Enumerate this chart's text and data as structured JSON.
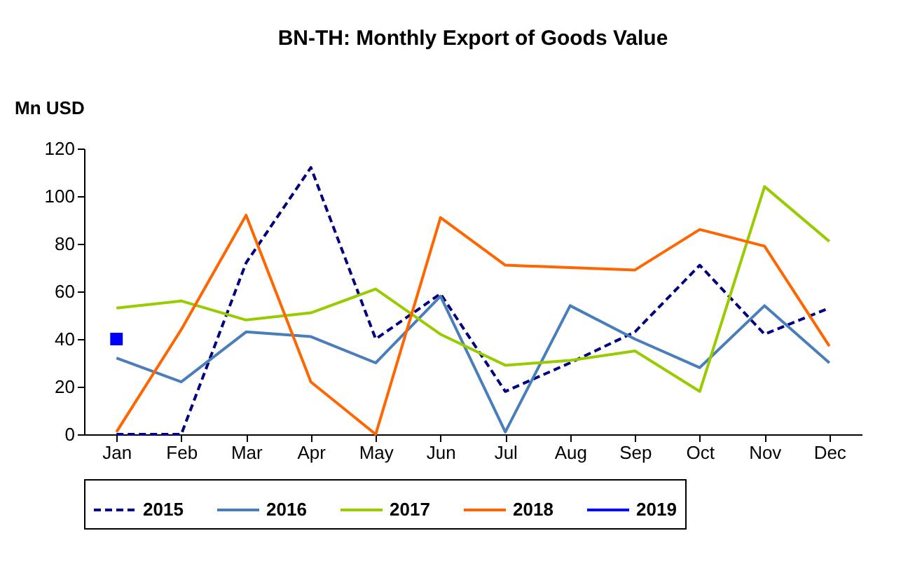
{
  "chart_data": {
    "type": "line",
    "title": "BN-TH: Monthly Export of Goods Value",
    "ylabel": "Mn USD",
    "categories": [
      "Jan",
      "Feb",
      "Mar",
      "Apr",
      "May",
      "Jun",
      "Jul",
      "Aug",
      "Sep",
      "Oct",
      "Nov",
      "Dec"
    ],
    "series": [
      {
        "name": "2015",
        "color": "#000080",
        "line_style": "dashed",
        "values": [
          0,
          0,
          72,
          112,
          40,
          59,
          18,
          30,
          43,
          71,
          42,
          53
        ]
      },
      {
        "name": "2016",
        "color": "#4a7ebb",
        "line_style": "solid",
        "values": [
          32,
          22,
          43,
          41,
          30,
          58,
          1,
          54,
          40,
          28,
          54,
          30
        ]
      },
      {
        "name": "2017",
        "color": "#99cc00",
        "line_style": "solid",
        "values": [
          53,
          56,
          48,
          51,
          61,
          42,
          29,
          31,
          35,
          18,
          104,
          81
        ]
      },
      {
        "name": "2018",
        "color": "#ff6600",
        "line_style": "solid",
        "values": [
          1,
          44,
          92,
          22,
          0,
          91,
          71,
          70,
          69,
          86,
          79,
          37
        ]
      },
      {
        "name": "2019",
        "color": "#0000ff",
        "line_style": "solid",
        "marker": "square",
        "values": [
          40,
          null,
          null,
          null,
          null,
          null,
          null,
          null,
          null,
          null,
          null,
          null
        ]
      }
    ],
    "ylim": [
      0,
      120
    ],
    "yticks": [
      0,
      20,
      40,
      60,
      80,
      100,
      120
    ],
    "grid": false,
    "legend": "bottom"
  }
}
